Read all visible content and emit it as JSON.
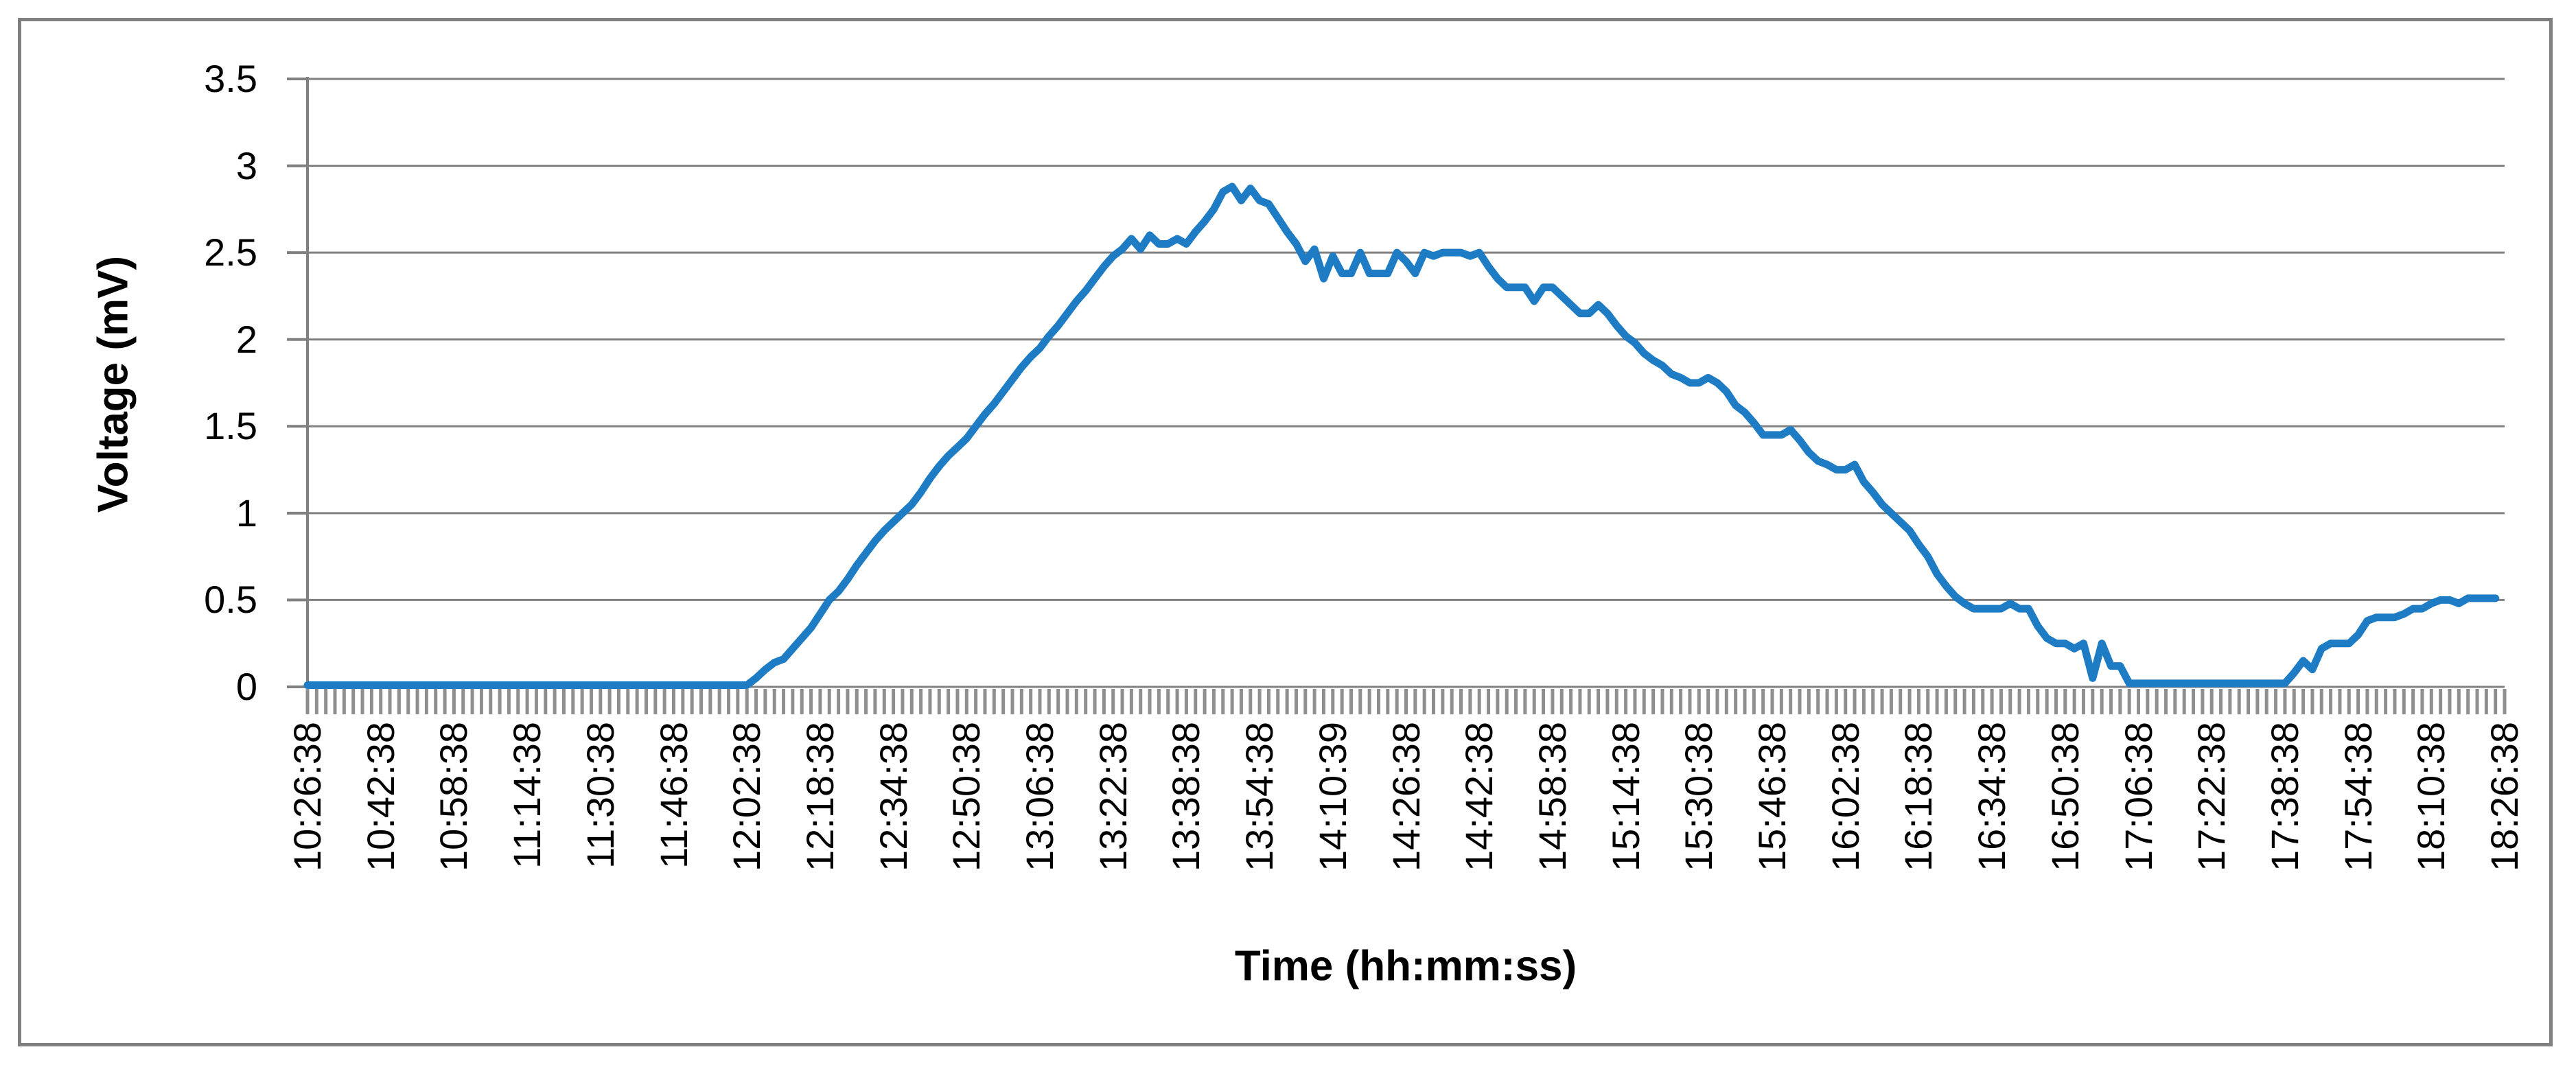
{
  "chart": {
    "y_axis_title": "Voltage (mV)",
    "x_axis_title": "Time (hh:mm:ss)",
    "y_tick_labels": [
      "3.5",
      "3",
      "2.5",
      "2",
      "1.5",
      "1",
      "0.5",
      "0"
    ],
    "x_tick_labels": [
      "10:26:38",
      "10:42:38",
      "10:58:38",
      "11:14:38",
      "11:30:38",
      "11:46:38",
      "12:02:38",
      "12:18:38",
      "12:34:38",
      "12:50:38",
      "13:06:38",
      "13:22:38",
      "13:38:38",
      "13:54:38",
      "14:10:39",
      "14:26:38",
      "14:42:38",
      "14:58:38",
      "15:14:38",
      "15:30:38",
      "15:46:38",
      "16:02:38",
      "16:18:38",
      "16:34:38",
      "16:50:38",
      "17:06:38",
      "17:22:38",
      "17:38:38",
      "17:54:38",
      "18:10:38",
      "18:26:38"
    ],
    "colors": {
      "line": "#1E7CC4",
      "grid": "#808080",
      "frame": "#808080",
      "minor_tick": "#8F8F8F",
      "text": "#000000"
    }
  },
  "chart_data": {
    "type": "line",
    "title": "",
    "xlabel": "Time (hh:mm:ss)",
    "ylabel": "Voltage (mV)",
    "ylim": [
      0,
      3.5
    ],
    "y_major_step": 0.5,
    "grid": "horizontal",
    "legend": "none",
    "x_axis": {
      "start_time": "10:26:38",
      "end_time": "18:26:38",
      "major_tick_interval_min": 16,
      "minor_tick_interval_min": 2,
      "total_span_min": 480
    },
    "series_name": "Voltage",
    "sample_step_minutes": 2,
    "values": [
      0.01,
      0.01,
      0.01,
      0.01,
      0.01,
      0.01,
      0.01,
      0.01,
      0.01,
      0.01,
      0.01,
      0.01,
      0.01,
      0.01,
      0.01,
      0.01,
      0.01,
      0.01,
      0.01,
      0.01,
      0.01,
      0.01,
      0.01,
      0.01,
      0.01,
      0.01,
      0.01,
      0.01,
      0.01,
      0.01,
      0.01,
      0.01,
      0.01,
      0.01,
      0.01,
      0.01,
      0.01,
      0.01,
      0.01,
      0.01,
      0.01,
      0.01,
      0.01,
      0.01,
      0.01,
      0.01,
      0.01,
      0.01,
      0.01,
      0.05,
      0.1,
      0.14,
      0.16,
      0.22,
      0.28,
      0.34,
      0.42,
      0.5,
      0.55,
      0.62,
      0.7,
      0.77,
      0.84,
      0.9,
      0.95,
      1.0,
      1.05,
      1.12,
      1.2,
      1.27,
      1.33,
      1.38,
      1.43,
      1.5,
      1.57,
      1.63,
      1.7,
      1.77,
      1.84,
      1.9,
      1.95,
      2.02,
      2.08,
      2.15,
      2.22,
      2.28,
      2.35,
      2.42,
      2.48,
      2.52,
      2.58,
      2.52,
      2.6,
      2.55,
      2.55,
      2.58,
      2.55,
      2.62,
      2.68,
      2.75,
      2.85,
      2.88,
      2.8,
      2.87,
      2.8,
      2.78,
      2.7,
      2.62,
      2.55,
      2.45,
      2.52,
      2.35,
      2.48,
      2.38,
      2.38,
      2.5,
      2.38,
      2.38,
      2.38,
      2.5,
      2.45,
      2.38,
      2.5,
      2.48,
      2.5,
      2.5,
      2.5,
      2.48,
      2.5,
      2.42,
      2.35,
      2.3,
      2.3,
      2.3,
      2.22,
      2.3,
      2.3,
      2.25,
      2.2,
      2.15,
      2.15,
      2.2,
      2.15,
      2.08,
      2.02,
      1.98,
      1.92,
      1.88,
      1.85,
      1.8,
      1.78,
      1.75,
      1.75,
      1.78,
      1.75,
      1.7,
      1.62,
      1.58,
      1.52,
      1.45,
      1.45,
      1.45,
      1.48,
      1.42,
      1.35,
      1.3,
      1.28,
      1.25,
      1.25,
      1.28,
      1.18,
      1.12,
      1.05,
      1.0,
      0.95,
      0.9,
      0.82,
      0.75,
      0.65,
      0.58,
      0.52,
      0.48,
      0.45,
      0.45,
      0.45,
      0.45,
      0.48,
      0.45,
      0.45,
      0.35,
      0.28,
      0.25,
      0.25,
      0.22,
      0.25,
      0.05,
      0.25,
      0.12,
      0.12,
      0.02,
      0.02,
      0.02,
      0.02,
      0.02,
      0.02,
      0.02,
      0.02,
      0.02,
      0.02,
      0.02,
      0.02,
      0.02,
      0.02,
      0.02,
      0.02,
      0.02,
      0.02,
      0.08,
      0.15,
      0.1,
      0.22,
      0.25,
      0.25,
      0.25,
      0.3,
      0.38,
      0.4,
      0.4,
      0.4,
      0.42,
      0.45,
      0.45,
      0.48,
      0.5,
      0.5,
      0.48,
      0.51,
      0.51,
      0.51,
      0.51
    ]
  }
}
